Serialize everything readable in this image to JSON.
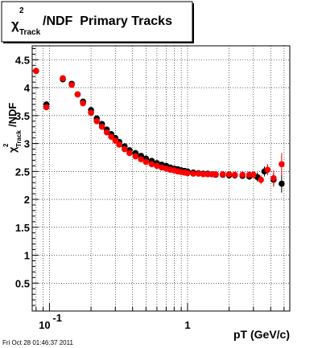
{
  "footer": {
    "timestamp": "Fri Oct 28 01:46:37 2011"
  },
  "chart_data": {
    "type": "scatter",
    "title_parts": {
      "symbol": "χ",
      "superscript": "2",
      "subscript": "Track",
      "suffix": "/NDF  Primary Tracks"
    },
    "ylabel_parts": {
      "symbol": "χ",
      "superscript": "2",
      "subscript": "Track",
      "suffix": "/NDF"
    },
    "xlabel": "pT (GeV/c)",
    "x_scale": "log",
    "xlim": [
      0.075,
      5.5
    ],
    "ylim": [
      0,
      4.75
    ],
    "grid": true,
    "y_ticks": [
      "0.5",
      "1",
      "1.5",
      "2",
      "2.5",
      "3",
      "3.5",
      "4",
      "4.5"
    ],
    "y_tick_values": [
      0.5,
      1,
      1.5,
      2,
      2.5,
      3,
      3.5,
      4,
      4.5
    ],
    "x_tick_labels": [
      {
        "value": 0.1,
        "base": "10",
        "exponent": "-1"
      },
      {
        "value": 1,
        "base": "1",
        "exponent": ""
      }
    ],
    "series": [
      {
        "color": "#000000",
        "x": [
          0.08,
          0.095,
          0.125,
          0.145,
          0.16,
          0.175,
          0.2,
          0.22,
          0.24,
          0.26,
          0.28,
          0.3,
          0.32,
          0.35,
          0.38,
          0.42,
          0.46,
          0.5,
          0.55,
          0.6,
          0.65,
          0.7,
          0.75,
          0.8,
          0.85,
          0.9,
          0.95,
          1.0,
          1.1,
          1.2,
          1.3,
          1.4,
          1.5,
          1.6,
          1.8,
          2.0,
          2.2,
          2.5,
          2.8,
          3.2,
          3.6,
          4.2,
          4.8
        ],
        "y": [
          4.3,
          3.7,
          4.15,
          4.07,
          3.88,
          3.75,
          3.6,
          3.45,
          3.35,
          3.25,
          3.17,
          3.1,
          3.03,
          2.95,
          2.88,
          2.83,
          2.78,
          2.73,
          2.69,
          2.65,
          2.62,
          2.6,
          2.57,
          2.55,
          2.54,
          2.52,
          2.51,
          2.5,
          2.48,
          2.47,
          2.46,
          2.46,
          2.45,
          2.44,
          2.44,
          2.43,
          2.43,
          2.42,
          2.41,
          2.4,
          2.5,
          2.35,
          2.28
        ],
        "yerr": [
          0.0,
          0.02,
          0.0,
          0.0,
          0.0,
          0.0,
          0.0,
          0.0,
          0.0,
          0.0,
          0.0,
          0.0,
          0.0,
          0.0,
          0.0,
          0.0,
          0.0,
          0.0,
          0.0,
          0.0,
          0.0,
          0.0,
          0.0,
          0.0,
          0.0,
          0.0,
          0.0,
          0.0,
          0.0,
          0.0,
          0.0,
          0.02,
          0.02,
          0.02,
          0.03,
          0.03,
          0.04,
          0.05,
          0.06,
          0.08,
          0.09,
          0.12,
          0.16
        ]
      },
      {
        "color": "#ff0000",
        "x": [
          0.08,
          0.095,
          0.125,
          0.145,
          0.16,
          0.175,
          0.2,
          0.22,
          0.24,
          0.26,
          0.28,
          0.3,
          0.32,
          0.35,
          0.38,
          0.42,
          0.46,
          0.5,
          0.55,
          0.6,
          0.65,
          0.7,
          0.75,
          0.8,
          0.85,
          0.9,
          0.95,
          1.0,
          1.1,
          1.2,
          1.3,
          1.4,
          1.5,
          1.6,
          1.8,
          2.0,
          2.2,
          2.5,
          2.8,
          3.0,
          3.4,
          3.8,
          4.2,
          4.8
        ],
        "y": [
          4.3,
          3.65,
          4.17,
          4.05,
          3.88,
          3.72,
          3.55,
          3.4,
          3.3,
          3.2,
          3.12,
          3.05,
          2.98,
          2.9,
          2.83,
          2.77,
          2.72,
          2.67,
          2.63,
          2.6,
          2.57,
          2.55,
          2.53,
          2.52,
          2.5,
          2.49,
          2.48,
          2.47,
          2.46,
          2.46,
          2.45,
          2.45,
          2.45,
          2.45,
          2.45,
          2.45,
          2.44,
          2.44,
          2.44,
          2.44,
          2.35,
          2.53,
          2.38,
          2.63
        ],
        "yerr": [
          0.0,
          0.02,
          0.0,
          0.0,
          0.0,
          0.0,
          0.0,
          0.0,
          0.0,
          0.0,
          0.0,
          0.0,
          0.0,
          0.0,
          0.0,
          0.0,
          0.0,
          0.0,
          0.0,
          0.0,
          0.0,
          0.0,
          0.0,
          0.0,
          0.0,
          0.0,
          0.0,
          0.0,
          0.0,
          0.0,
          0.0,
          0.02,
          0.02,
          0.02,
          0.03,
          0.03,
          0.04,
          0.05,
          0.06,
          0.07,
          0.08,
          0.1,
          0.14,
          0.2
        ]
      }
    ]
  }
}
